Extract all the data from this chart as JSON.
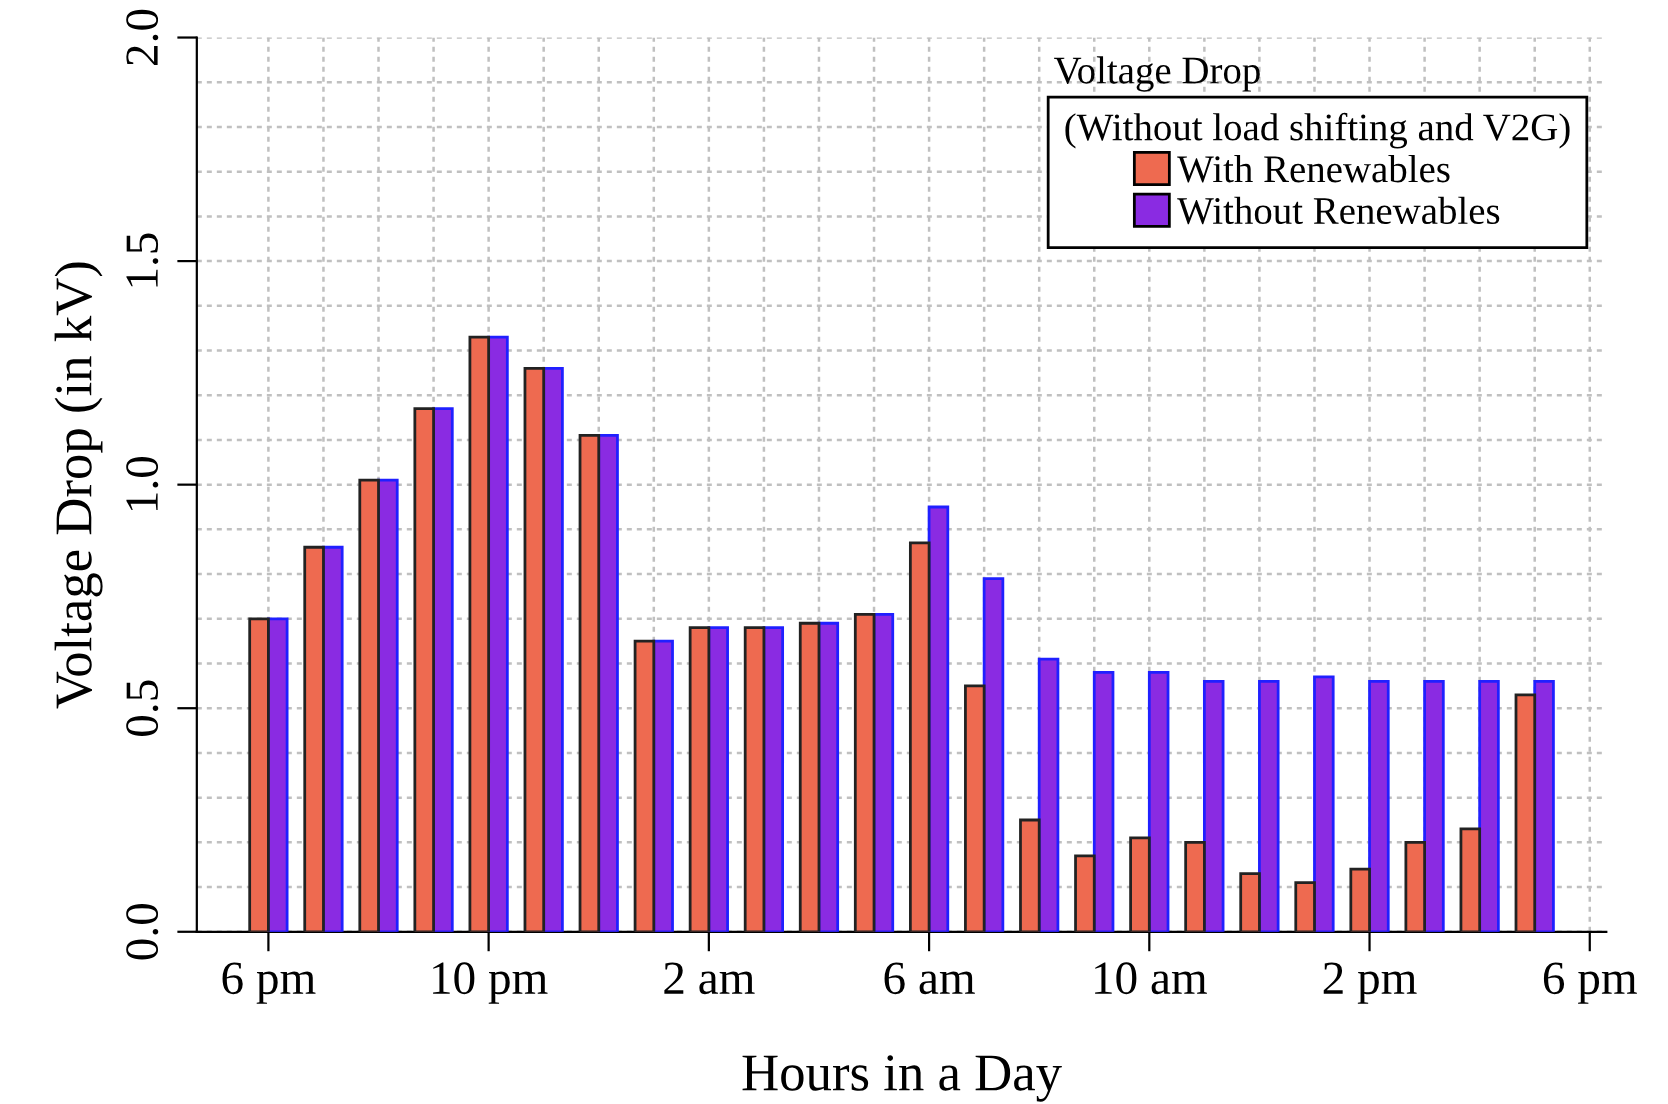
{
  "chart_data": {
    "type": "bar",
    "xlabel": "Hours in a Day",
    "ylabel": "Voltage Drop (in kV)",
    "legend_title": "Voltage Drop",
    "annotations": [
      "(Without load shifting and V2G)"
    ],
    "categories": [
      "6 pm",
      null,
      null,
      null,
      "10 pm",
      null,
      null,
      null,
      "2 am",
      null,
      null,
      null,
      "6 am",
      null,
      null,
      null,
      "10 am",
      null,
      null,
      null,
      "2 pm",
      null,
      null,
      null,
      "6 pm"
    ],
    "series": [
      {
        "name": "With Renewables",
        "color": "#ee6a50",
        "values": [
          0.7,
          0.86,
          1.01,
          1.17,
          1.33,
          1.26,
          1.11,
          0.65,
          0.68,
          0.68,
          0.69,
          0.71,
          0.87,
          0.55,
          0.25,
          0.17,
          0.21,
          0.2,
          0.13,
          0.11,
          0.14,
          0.2,
          0.23,
          0.53,
          null
        ]
      },
      {
        "name": "Without Renewables",
        "color": "#8a2be2",
        "values": [
          0.7,
          0.86,
          1.01,
          1.17,
          1.33,
          1.26,
          1.11,
          0.65,
          0.68,
          0.68,
          0.69,
          0.71,
          0.95,
          0.79,
          0.61,
          0.58,
          0.58,
          0.56,
          0.56,
          0.57,
          0.56,
          0.56,
          0.56,
          0.56,
          null
        ]
      }
    ],
    "ylim": [
      0,
      2.0
    ],
    "yticks": [
      {
        "value": 0,
        "label": "0.0"
      },
      {
        "value": 0.1,
        "label": null
      },
      {
        "value": 0.2,
        "label": null
      },
      {
        "value": 0.3,
        "label": null
      },
      {
        "value": 0.4,
        "label": null
      },
      {
        "value": 0.5,
        "label": "0.5"
      },
      {
        "value": 0.6,
        "label": null
      },
      {
        "value": 0.7,
        "label": null
      },
      {
        "value": 0.8,
        "label": null
      },
      {
        "value": 0.9,
        "label": null
      },
      {
        "value": 1.0,
        "label": "1.0"
      },
      {
        "value": 1.1,
        "label": null
      },
      {
        "value": 1.2,
        "label": null
      },
      {
        "value": 1.3,
        "label": null
      },
      {
        "value": 1.4,
        "label": null
      },
      {
        "value": 1.5,
        "label": "1.5"
      },
      {
        "value": 1.6,
        "label": null
      },
      {
        "value": 1.7,
        "label": null
      },
      {
        "value": 1.8,
        "label": null
      },
      {
        "value": 1.9,
        "label": null
      },
      {
        "value": 2.0,
        "label": "2.0"
      }
    ],
    "grid": true,
    "legend": "top right"
  }
}
